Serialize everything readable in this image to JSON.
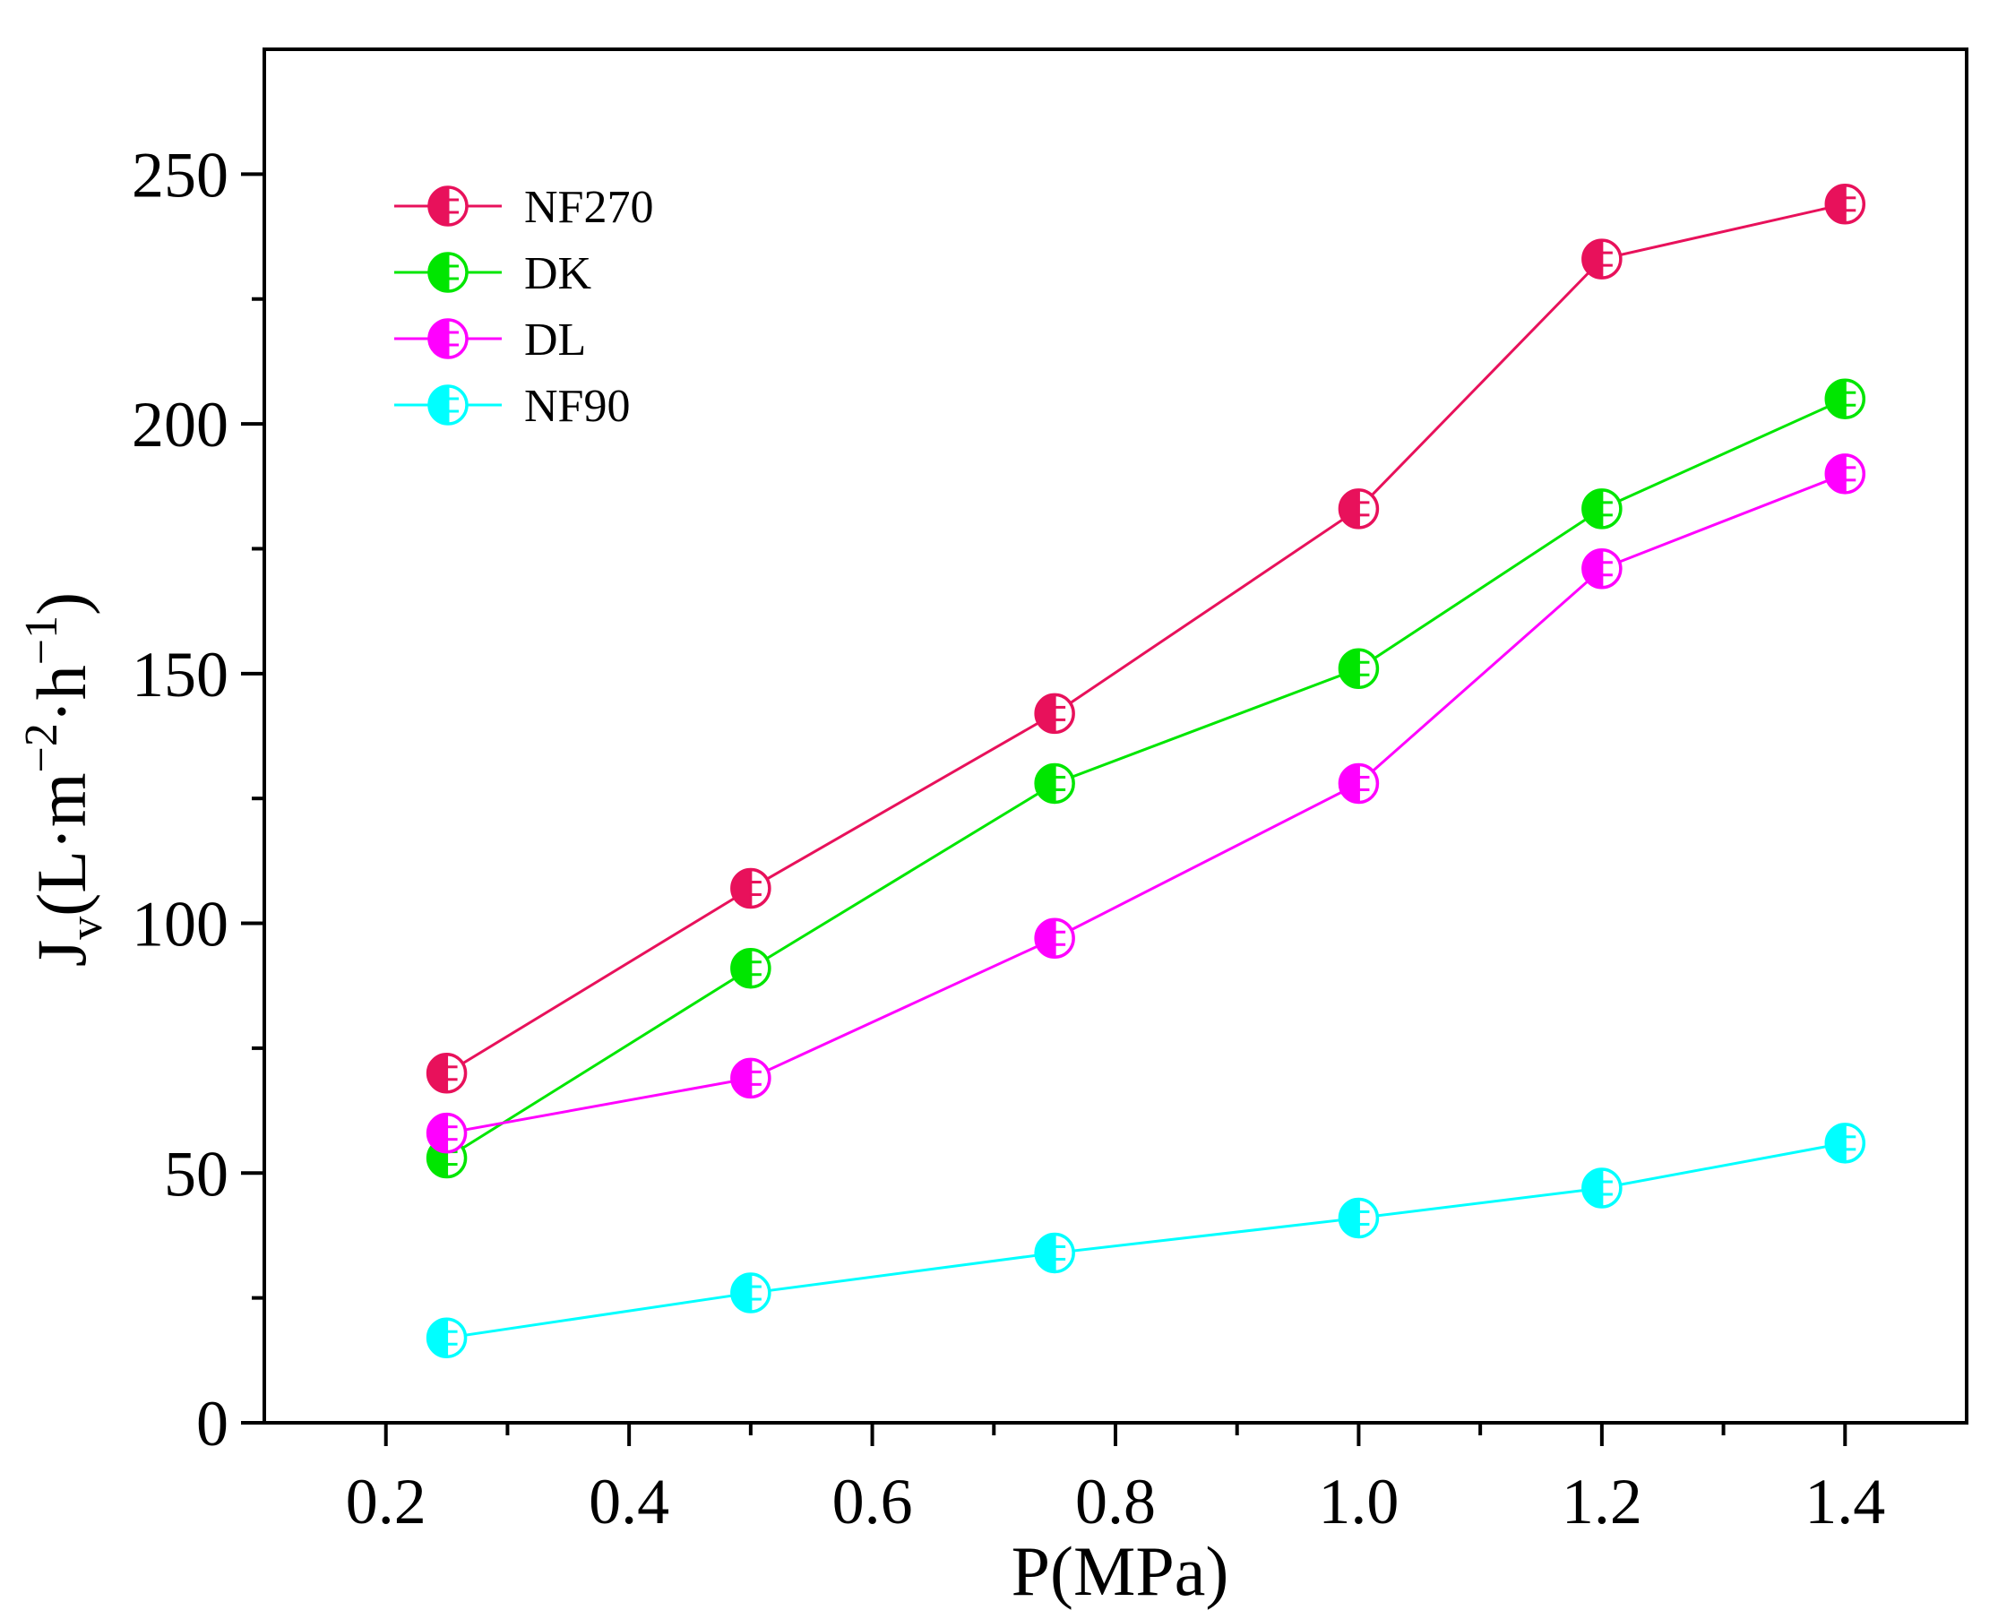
{
  "chart_data": {
    "type": "line",
    "title": "",
    "xlabel": "P(MPa)",
    "ylabel": {
      "base": "J",
      "base_sub": "v",
      "unit_open": "(L·m",
      "exp1": "−2",
      "unit_mid": "·h",
      "exp2": "−1",
      "unit_close": ")"
    },
    "xlim": [
      0.1,
      1.5
    ],
    "ylim": [
      0,
      275
    ],
    "xticks": [
      "0.2",
      "0.4",
      "0.6",
      "0.8",
      "1.0",
      "1.2",
      "1.4"
    ],
    "yticks": [
      "0",
      "50",
      "100",
      "150",
      "200",
      "250"
    ],
    "legend_position": "top-left",
    "x": [
      0.25,
      0.5,
      0.75,
      1.0,
      1.2,
      1.4
    ],
    "series": [
      {
        "name": "NF270",
        "color": "#e8115b",
        "values": [
          70,
          107,
          142,
          183,
          233,
          244
        ]
      },
      {
        "name": "DK",
        "color": "#00e600",
        "values": [
          53,
          91,
          128,
          151,
          183,
          205
        ]
      },
      {
        "name": "DL",
        "color": "#ff00ff",
        "values": [
          58,
          69,
          97,
          128,
          171,
          190
        ]
      },
      {
        "name": "NF90",
        "color": "#00ffff",
        "values": [
          17,
          26,
          34,
          41,
          47,
          56
        ]
      }
    ]
  }
}
